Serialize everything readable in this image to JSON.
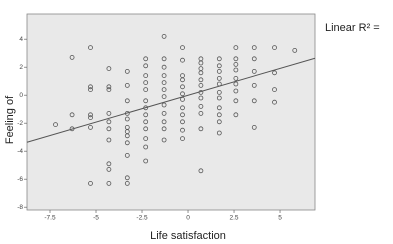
{
  "chart_data": {
    "type": "scatter",
    "annotation": "Linear R² =",
    "x_label": "Life satisfaction",
    "y_label": "Feeling of",
    "xlim": [
      -8.75,
      6.9
    ],
    "ylim": [
      -8.2,
      5.8
    ],
    "xticks": [
      -7.5,
      -5,
      -2.5,
      0,
      2.5,
      5
    ],
    "yticks": [
      -8,
      -6,
      -4,
      -2,
      0,
      2,
      4
    ],
    "background": "#e9e9e9",
    "series": [
      {
        "color": "#555555",
        "x": [
          -7.2,
          -6.3,
          -6.3,
          -6.3,
          -5.3,
          -5.3,
          -5.3,
          -5.3,
          -5.3,
          -5.3,
          -5.3,
          -4.3,
          -4.3,
          -4.3,
          -4.3,
          -4.3,
          -4.3,
          -4.3,
          -4.3,
          -4.3,
          -4.3,
          -3.3,
          -3.3,
          -3.3,
          -3.3,
          -3.3,
          -3.3,
          -3.3,
          -3.3,
          -3.3,
          -3.3,
          -3.3,
          -3.3,
          -2.3,
          -2.3,
          -2.3,
          -2.3,
          -2.3,
          -2.3,
          -2.3,
          -2.3,
          -2.3,
          -2.3,
          -2.3,
          -2.3,
          -2.3,
          -1.3,
          -1.3,
          -1.3,
          -1.3,
          -1.3,
          -1.3,
          -1.3,
          -1.3,
          -1.3,
          -1.3,
          -1.3,
          -1.3,
          -0.3,
          -0.3,
          -0.3,
          -0.3,
          -0.3,
          -0.3,
          -0.3,
          -0.3,
          -0.3,
          -0.3,
          -0.3,
          -0.3,
          0.7,
          0.7,
          0.7,
          0.7,
          0.7,
          0.7,
          0.7,
          0.7,
          0.7,
          0.7,
          0.7,
          0.7,
          1.7,
          1.7,
          1.7,
          1.7,
          1.7,
          1.7,
          1.7,
          1.7,
          1.7,
          1.7,
          1.7,
          2.6,
          2.6,
          2.6,
          2.6,
          2.6,
          2.6,
          2.6,
          2.6,
          2.6,
          3.6,
          3.6,
          3.6,
          3.6,
          3.6,
          3.6,
          4.7,
          4.7,
          4.7,
          4.7,
          5.8
        ],
        "y": [
          -2.1,
          2.7,
          -1.4,
          -2.4,
          3.4,
          0.6,
          0.4,
          -1.4,
          -1.6,
          -2.3,
          -6.3,
          1.9,
          0.6,
          0.4,
          -1.3,
          -1.9,
          -2.4,
          -3.2,
          -4.9,
          -5.3,
          -6.3,
          1.7,
          0.7,
          -0.4,
          -1.3,
          -1.7,
          -2.3,
          -2.6,
          -2.9,
          -3.4,
          -4.3,
          -5.9,
          -6.3,
          2.6,
          2.1,
          1.4,
          0.9,
          0.4,
          -0.4,
          -0.9,
          -1.4,
          -1.9,
          -2.4,
          -3.1,
          -3.7,
          -4.7,
          4.2,
          2.6,
          2.0,
          1.4,
          0.9,
          0.4,
          -0.1,
          -0.7,
          -1.3,
          -1.9,
          -2.4,
          -3.2,
          3.4,
          2.5,
          1.4,
          1.1,
          0.6,
          0.1,
          -0.3,
          -0.9,
          -1.4,
          -1.9,
          -2.5,
          -3.1,
          2.6,
          2.3,
          1.9,
          1.6,
          1.1,
          0.7,
          0.2,
          -0.2,
          -0.8,
          -1.3,
          -2.4,
          -5.4,
          2.6,
          2.1,
          1.7,
          1.2,
          0.8,
          0.2,
          -0.2,
          -0.9,
          -1.4,
          -1.9,
          -2.7,
          3.4,
          2.6,
          2.2,
          1.8,
          1.2,
          0.8,
          0.3,
          -0.4,
          -1.4,
          3.4,
          2.6,
          1.7,
          0.7,
          -0.4,
          -2.3,
          3.4,
          1.6,
          0.4,
          -0.5,
          3.2
        ]
      }
    ],
    "fit_line": {
      "color": "#555555",
      "x": [
        -8.75,
        6.9
      ],
      "y": [
        -3.36,
        2.64
      ]
    }
  }
}
